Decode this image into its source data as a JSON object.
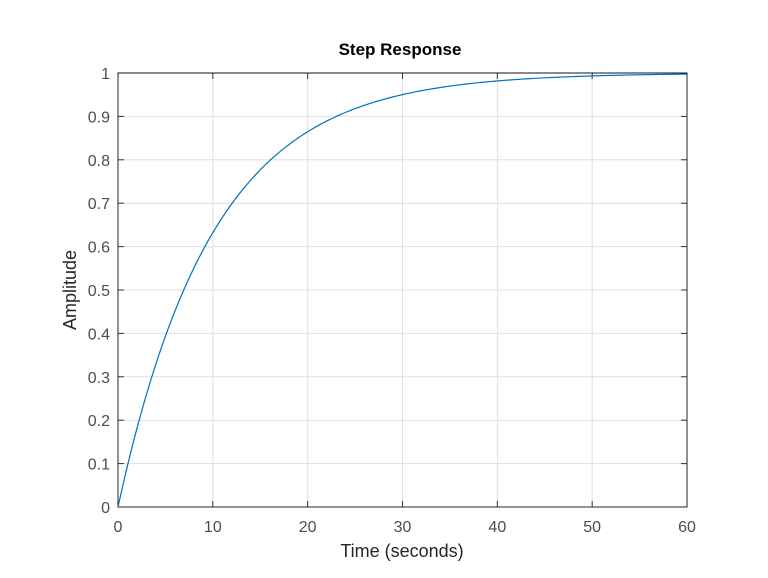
{
  "chart_data": {
    "type": "line",
    "title": "Step Response",
    "xlabel": "Time (seconds)",
    "ylabel": "Amplitude",
    "xlim": [
      0,
      60
    ],
    "ylim": [
      0,
      1
    ],
    "xticks": [
      0,
      10,
      20,
      30,
      40,
      50,
      60
    ],
    "yticks": [
      0,
      0.1,
      0.2,
      0.3,
      0.4,
      0.5,
      0.6,
      0.7,
      0.8,
      0.9,
      1
    ],
    "xtick_labels": [
      "0",
      "10",
      "20",
      "30",
      "40",
      "50",
      "60"
    ],
    "ytick_labels": [
      "0",
      "0.1",
      "0.2",
      "0.3",
      "0.4",
      "0.5",
      "0.6",
      "0.7",
      "0.8",
      "0.9",
      "1"
    ],
    "grid": true,
    "legend": null,
    "series": [
      {
        "name": "step response",
        "color": "#0072bd",
        "x": [
          0,
          2,
          4,
          6,
          8,
          10,
          12,
          14,
          16,
          18,
          20,
          22,
          24,
          26,
          28,
          30,
          32,
          34,
          36,
          38,
          40,
          42,
          44,
          46,
          48,
          50,
          52,
          54,
          56,
          58,
          60
        ],
        "y": [
          0,
          0.181,
          0.33,
          0.451,
          0.551,
          0.632,
          0.699,
          0.753,
          0.798,
          0.835,
          0.865,
          0.889,
          0.909,
          0.926,
          0.939,
          0.95,
          0.959,
          0.967,
          0.973,
          0.978,
          0.982,
          0.985,
          0.988,
          0.99,
          0.992,
          0.993,
          0.994,
          0.995,
          0.996,
          0.997,
          0.998
        ]
      }
    ],
    "reference_line": {
      "y": 1,
      "style": "dotted",
      "color": "#000000"
    }
  }
}
